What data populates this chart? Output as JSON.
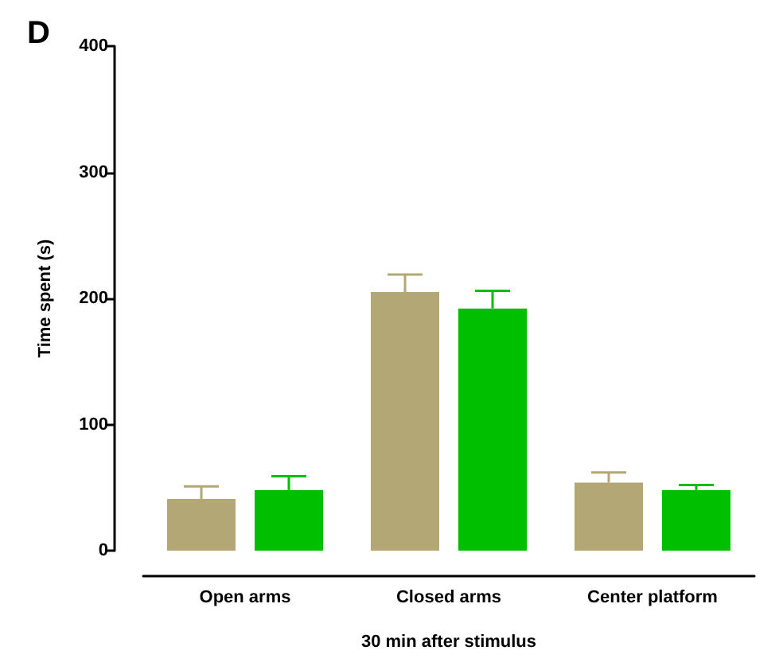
{
  "chart_data": {
    "type": "bar",
    "title": "D",
    "xlabel": "30 min after stimulus",
    "ylabel": "Time spent (s)",
    "categories": [
      "Open arms",
      "Closed arms",
      "Center platform"
    ],
    "series": [
      {
        "color": "#b3a775",
        "values": [
          41,
          205,
          54
        ],
        "errors": [
          [
            41,
            51
          ],
          [
            205,
            219
          ],
          [
            54,
            62
          ]
        ]
      },
      {
        "color": "#00bf00",
        "values": [
          48,
          192,
          48
        ],
        "errors": [
          [
            48,
            59
          ],
          [
            192,
            206
          ],
          [
            48,
            52
          ]
        ]
      }
    ],
    "ylim": [
      0,
      400
    ],
    "yticks": [
      0,
      100,
      200,
      300,
      400
    ],
    "grid": false
  }
}
